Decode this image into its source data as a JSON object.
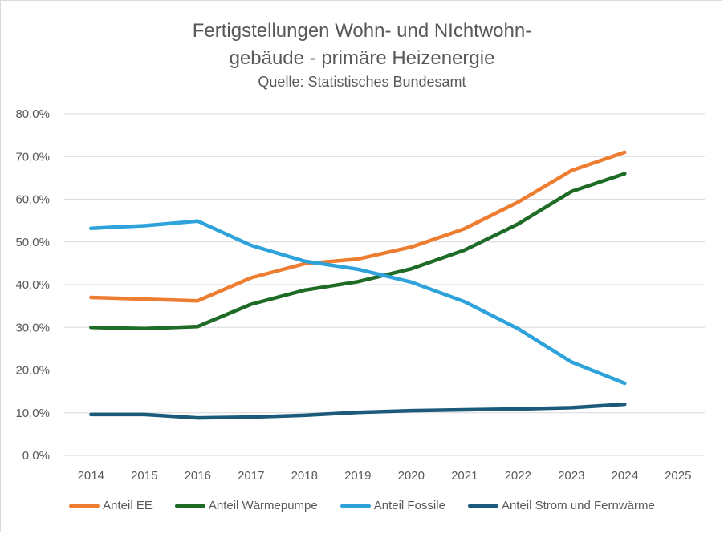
{
  "chart_data": {
    "type": "line",
    "title": "Fertigstellungen Wohn- und NIchtwohn- gebäude - primäre Heizenergie",
    "subtitle": "Quelle: Statistisches Bundesamt",
    "x": [
      "2014",
      "2015",
      "2016",
      "2017",
      "2018",
      "2019",
      "2020",
      "2021",
      "2022",
      "2023",
      "2024",
      "2025"
    ],
    "y_ticks": [
      "0,0%",
      "10,0%",
      "20,0%",
      "30,0%",
      "40,0%",
      "50,0%",
      "60,0%",
      "70,0%",
      "80,0%"
    ],
    "ylim": [
      0,
      80
    ],
    "grid": true,
    "legend_position": "bottom",
    "series": [
      {
        "name": "Anteil EE",
        "color": "#ED7D31",
        "values": [
          37.0,
          36.6,
          36.2,
          41.6,
          44.9,
          46.0,
          48.8,
          53.1,
          59.3,
          66.7,
          71.0,
          null
        ]
      },
      {
        "name": "Anteil Wärmepumpe",
        "color": "#1E6B25",
        "values": [
          30.0,
          29.7,
          30.2,
          35.4,
          38.7,
          40.7,
          43.7,
          48.1,
          54.2,
          61.8,
          66.0,
          null
        ]
      },
      {
        "name": "Anteil Fossile",
        "color": "#2EA2DA",
        "values": [
          53.2,
          53.8,
          54.9,
          49.2,
          45.5,
          43.6,
          40.6,
          36.0,
          29.7,
          21.9,
          16.9,
          null
        ]
      },
      {
        "name": "Anteil Strom und Fernwärme",
        "color": "#1B5A7A",
        "values": [
          9.6,
          9.6,
          8.8,
          9.0,
          9.4,
          10.1,
          10.5,
          10.7,
          10.9,
          11.2,
          12.0,
          null
        ]
      }
    ]
  }
}
